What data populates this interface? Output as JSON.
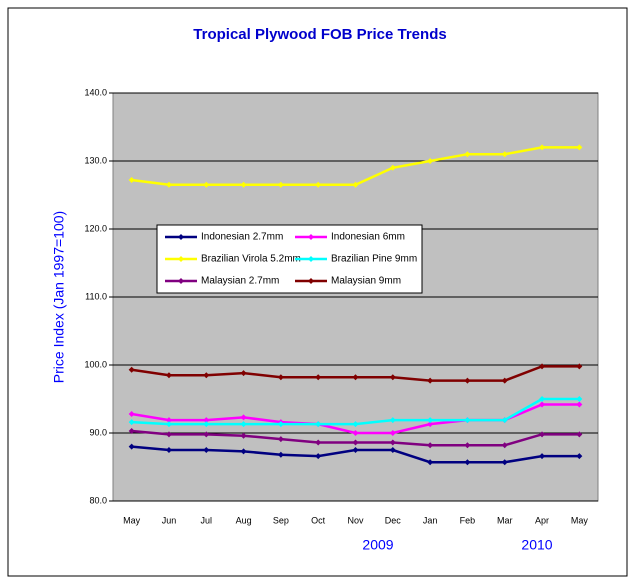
{
  "chart_data": {
    "type": "line",
    "title": "Tropical Plywood FOB Price Trends",
    "y_label": "Price Index (Jan 1997=100)",
    "annotations": [
      "2009",
      "2010"
    ],
    "categories": [
      "May",
      "Jun",
      "Jul",
      "Aug",
      "Sep",
      "Oct",
      "Nov",
      "Dec",
      "Jan",
      "Feb",
      "Mar",
      "Apr",
      "May"
    ],
    "ylim": [
      80,
      140
    ],
    "yticks": [
      {
        "value": 80,
        "label": "80.0"
      },
      {
        "value": 90,
        "label": "90.0"
      },
      {
        "value": 100,
        "label": "100.0"
      },
      {
        "value": 110,
        "label": "110.0"
      },
      {
        "value": 120,
        "label": "120.0"
      },
      {
        "value": 130,
        "label": "130.0"
      },
      {
        "value": 140,
        "label": "140.0"
      }
    ],
    "grid": true,
    "series": [
      {
        "name": "Indonesian 2.7mm",
        "color": "#000080",
        "values": [
          88,
          87.5,
          87.5,
          87.3,
          86.8,
          86.6,
          87.5,
          87.5,
          85.7,
          85.7,
          85.7,
          86.6,
          86.6
        ]
      },
      {
        "name": "Indonesian 6mm",
        "color": "#ff00ff",
        "values": [
          92.8,
          91.9,
          91.9,
          92.3,
          91.6,
          91.3,
          90,
          90,
          91.3,
          91.9,
          91.9,
          94.2,
          94.2
        ]
      },
      {
        "name": "Brazilian Virola 5.2mm",
        "color": "#ffff00",
        "values": [
          127.2,
          126.5,
          126.5,
          126.5,
          126.5,
          126.5,
          126.5,
          129,
          130,
          131,
          131,
          132,
          132
        ]
      },
      {
        "name": "Brazilian Pine 9mm",
        "color": "#00ffff",
        "values": [
          91.6,
          91.3,
          91.3,
          91.3,
          91.3,
          91.3,
          91.3,
          91.9,
          91.9,
          91.9,
          91.9,
          95,
          95
        ]
      },
      {
        "name": "Malaysian 2.7mm",
        "color": "#800080",
        "values": [
          90.3,
          89.8,
          89.8,
          89.6,
          89.1,
          88.6,
          88.6,
          88.6,
          88.2,
          88.2,
          88.2,
          89.8,
          89.8
        ]
      },
      {
        "name": "Malaysian 9mm",
        "color": "#800000",
        "values": [
          99.3,
          98.5,
          98.5,
          98.8,
          98.2,
          98.2,
          98.2,
          98.2,
          97.7,
          97.7,
          97.7,
          99.8,
          99.8
        ]
      }
    ]
  }
}
